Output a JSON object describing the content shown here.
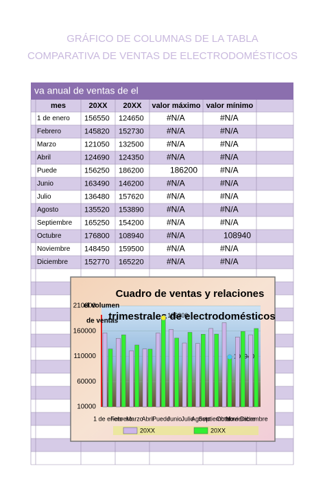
{
  "header": {
    "title_lines": [
      "GRÁFICO DE COLUMNAS DE LA TABLA",
      "COMPARATIVA DE VENTAS DE ELECTRODOMÉSTICOS"
    ]
  },
  "table": {
    "banner": "va anual de ventas de el",
    "header": [
      "mes",
      "20XX",
      "20XX",
      "valor máximo",
      "valor mínimo"
    ],
    "rows": [
      [
        "1 de enero",
        156550,
        124650,
        "#N/A",
        "#N/A"
      ],
      [
        "Febrero",
        145820,
        152730,
        "#N/A",
        "#N/A"
      ],
      [
        "Marzo",
        121050,
        132500,
        "#N/A",
        "#N/A"
      ],
      [
        "Abril",
        124690,
        124350,
        "#N/A",
        "#N/A"
      ],
      [
        "Puede",
        156250,
        186200,
        186200,
        "#N/A"
      ],
      [
        "Junio",
        163490,
        146200,
        "#N/A",
        "#N/A"
      ],
      [
        "Julio",
        136480,
        157620,
        "#N/A",
        "#N/A"
      ],
      [
        "Agosto",
        135520,
        153890,
        "#N/A",
        "#N/A"
      ],
      [
        "Septiembre",
        165250,
        154200,
        "#N/A",
        "#N/A"
      ],
      [
        "Octubre",
        176800,
        108940,
        "#N/A",
        108940
      ],
      [
        "Noviembre",
        148450,
        159500,
        "#N/A",
        "#N/A"
      ],
      [
        "Diciembre",
        152770,
        165220,
        "#N/A",
        "#N/A"
      ]
    ]
  },
  "chart": {
    "type": "bar",
    "title_lines": [
      "Cuadro de ventas y relaciones",
      "trimestrales de electrodomésticos"
    ],
    "y_label_lines": [
      "el volumen",
      "de ventas"
    ],
    "ylim": [
      10000,
      210000
    ],
    "yticks": [
      10000,
      60000,
      110000,
      160000,
      210000
    ],
    "colors": [
      "#cdb6ea",
      "#33ee33"
    ],
    "max_color": "#f2ef2a",
    "min_color": "#44c8f0"
  }
}
